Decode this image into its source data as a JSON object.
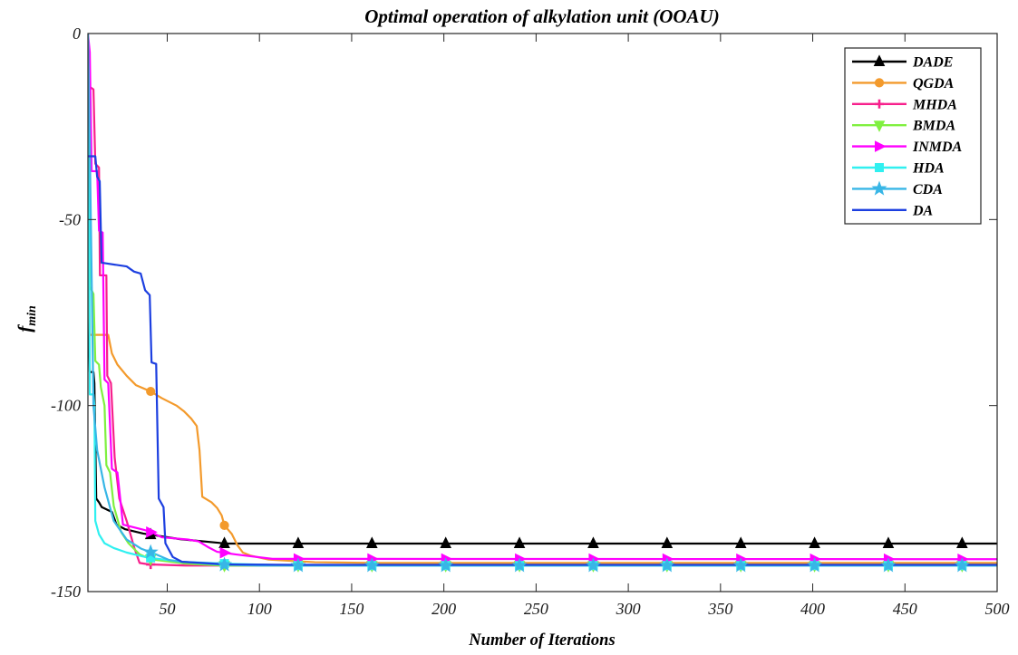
{
  "chart_data": {
    "type": "line",
    "title": "Optimal operation of alkylation unit (OOAU)",
    "xlabel": "Number of Iterations",
    "ylabel": "f",
    "ylabel_subscript": "min",
    "xlim": [
      7,
      500
    ],
    "ylim": [
      -150,
      0
    ],
    "xticks": [
      50,
      100,
      150,
      200,
      250,
      300,
      350,
      400,
      450,
      500
    ],
    "yticks": [
      0,
      -50,
      -100,
      -150
    ],
    "grid": false,
    "legend": "top-right",
    "series": [
      {
        "name": "DADE",
        "color": "#000000",
        "marker": "triangle-up",
        "points": [
          [
            7,
            -71
          ],
          [
            8,
            -91
          ],
          [
            10,
            -91
          ],
          [
            10.5,
            -94
          ],
          [
            11.5,
            -125
          ],
          [
            13,
            -126
          ],
          [
            14.5,
            -127.3
          ],
          [
            20,
            -128.6
          ],
          [
            22.5,
            -132
          ],
          [
            27,
            -133.2
          ],
          [
            37,
            -134.4
          ],
          [
            57,
            -135.9
          ],
          [
            78,
            -136.9
          ],
          [
            81,
            -137.1
          ],
          [
            500,
            -137.1
          ]
        ]
      },
      {
        "name": "QGDA",
        "color": "#f39a2c",
        "marker": "circle",
        "points": [
          [
            7,
            -58
          ],
          [
            8,
            -81
          ],
          [
            18,
            -81
          ],
          [
            20,
            -86
          ],
          [
            23,
            -89
          ],
          [
            28,
            -92
          ],
          [
            33,
            -94.5
          ],
          [
            41,
            -96.2
          ],
          [
            47,
            -98
          ],
          [
            55,
            -100
          ],
          [
            59,
            -101.5
          ],
          [
            63,
            -103.5
          ],
          [
            66,
            -105.5
          ],
          [
            67.5,
            -112
          ],
          [
            69,
            -124.5
          ],
          [
            74,
            -126
          ],
          [
            77,
            -127.5
          ],
          [
            79.5,
            -129.5
          ],
          [
            81,
            -132.2
          ],
          [
            85,
            -134.5
          ],
          [
            88,
            -137.5
          ],
          [
            91,
            -139.5
          ],
          [
            95,
            -140.3
          ],
          [
            105,
            -141.4
          ],
          [
            130,
            -142.1
          ],
          [
            160,
            -142.3
          ],
          [
            500,
            -142.3
          ]
        ]
      },
      {
        "name": "MHDA",
        "color": "#f7208c",
        "marker": "plus",
        "points": [
          [
            7,
            -14
          ],
          [
            10,
            -15
          ],
          [
            11,
            -35
          ],
          [
            13,
            -36
          ],
          [
            13.5,
            -65
          ],
          [
            17,
            -65
          ],
          [
            17.5,
            -92
          ],
          [
            19.5,
            -94
          ],
          [
            21.5,
            -114
          ],
          [
            24,
            -125
          ],
          [
            28,
            -131
          ],
          [
            32,
            -138
          ],
          [
            35,
            -142.3
          ],
          [
            40,
            -142.7
          ],
          [
            60,
            -143
          ],
          [
            500,
            -143
          ]
        ]
      },
      {
        "name": "BMDA",
        "color": "#80f040",
        "marker": "triangle-down",
        "points": [
          [
            7,
            -17
          ],
          [
            8,
            -68
          ],
          [
            10,
            -70
          ],
          [
            11,
            -88
          ],
          [
            13,
            -89
          ],
          [
            14,
            -95
          ],
          [
            16,
            -100
          ],
          [
            17,
            -116
          ],
          [
            19,
            -118
          ],
          [
            21,
            -127
          ],
          [
            25,
            -134
          ],
          [
            29,
            -137
          ],
          [
            35,
            -140
          ],
          [
            41,
            -141.3
          ],
          [
            60,
            -142.5
          ],
          [
            80,
            -143
          ],
          [
            500,
            -143
          ]
        ]
      },
      {
        "name": "INMDA",
        "color": "#ff00ff",
        "marker": "triangle-right",
        "points": [
          [
            7,
            0
          ],
          [
            8,
            -5
          ],
          [
            9,
            -37
          ],
          [
            12,
            -37
          ],
          [
            13,
            -53
          ],
          [
            15,
            -53.5
          ],
          [
            16,
            -93
          ],
          [
            18,
            -94
          ],
          [
            20,
            -117
          ],
          [
            23,
            -118
          ],
          [
            26,
            -132
          ],
          [
            38,
            -133.5
          ],
          [
            41,
            -134
          ],
          [
            47,
            -135.4
          ],
          [
            61,
            -136
          ],
          [
            67,
            -136.5
          ],
          [
            72,
            -138
          ],
          [
            77,
            -139.3
          ],
          [
            87,
            -140
          ],
          [
            107,
            -141.2
          ],
          [
            500,
            -141.3
          ]
        ]
      },
      {
        "name": "HDA",
        "color": "#30f0f0",
        "marker": "square",
        "points": [
          [
            7,
            0
          ],
          [
            7.5,
            -20
          ],
          [
            8,
            -97
          ],
          [
            10,
            -97
          ],
          [
            10.5,
            -100
          ],
          [
            11,
            -131
          ],
          [
            13,
            -134.6
          ],
          [
            16,
            -137
          ],
          [
            21,
            -138.3
          ],
          [
            28,
            -139.5
          ],
          [
            38,
            -140.7
          ],
          [
            42,
            -141
          ],
          [
            58,
            -142
          ],
          [
            82,
            -142.5
          ],
          [
            120,
            -143
          ],
          [
            500,
            -143
          ]
        ]
      },
      {
        "name": "CDA",
        "color": "#38b6e6",
        "marker": "pentagram",
        "points": [
          [
            7,
            0
          ],
          [
            8,
            -30
          ],
          [
            9,
            -65
          ],
          [
            10,
            -100
          ],
          [
            12,
            -112
          ],
          [
            16,
            -122
          ],
          [
            21,
            -131
          ],
          [
            28,
            -136
          ],
          [
            36,
            -138.5
          ],
          [
            42,
            -139.6
          ],
          [
            51,
            -141.5
          ],
          [
            58,
            -142
          ],
          [
            81,
            -142.8
          ],
          [
            100,
            -143
          ],
          [
            500,
            -143
          ]
        ]
      },
      {
        "name": "DA",
        "color": "#1c3fe0",
        "marker": "none",
        "points": [
          [
            7,
            -33
          ],
          [
            11,
            -33
          ],
          [
            12,
            -38.5
          ],
          [
            13.4,
            -39.7
          ],
          [
            14.4,
            -61.6
          ],
          [
            28,
            -62.6
          ],
          [
            32,
            -64
          ],
          [
            35.6,
            -64.5
          ],
          [
            38,
            -69
          ],
          [
            40.5,
            -70.3
          ],
          [
            41.5,
            -88.4
          ],
          [
            44,
            -88.8
          ],
          [
            45.4,
            -125
          ],
          [
            48,
            -127.3
          ],
          [
            49,
            -137
          ],
          [
            53,
            -140.7
          ],
          [
            58,
            -142
          ],
          [
            82,
            -142.7
          ],
          [
            120,
            -142.8
          ],
          [
            500,
            -142.8
          ]
        ]
      }
    ]
  }
}
